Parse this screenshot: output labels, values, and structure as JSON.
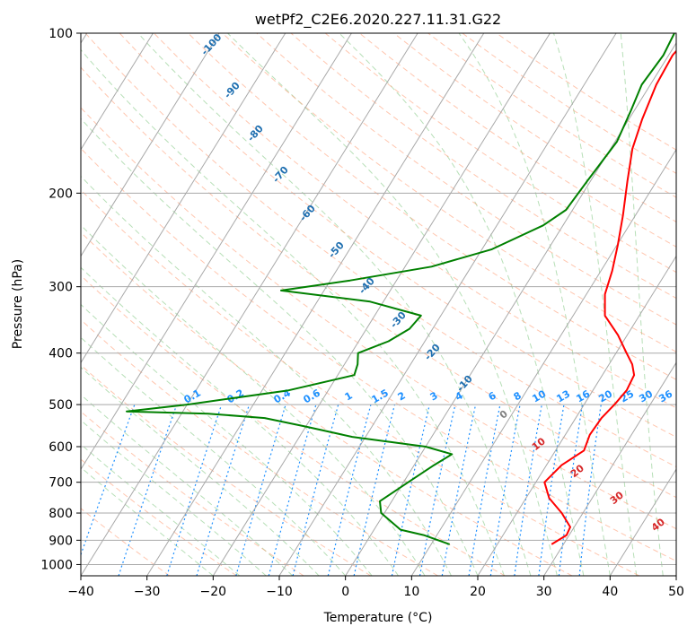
{
  "chart_data": {
    "type": "skew-t",
    "title": "wetPf2_C2E6.2020.227.11.31.G22",
    "xlabel": "Temperature (°C)",
    "ylabel": "Pressure (hPa)",
    "xlim": [
      -40,
      50
    ],
    "ylim": [
      1050,
      100
    ],
    "x_ticks": [
      -40,
      -30,
      -20,
      -10,
      0,
      10,
      20,
      30,
      40,
      50
    ],
    "y_ticks": [
      100,
      200,
      300,
      400,
      500,
      600,
      700,
      800,
      900,
      1000
    ],
    "y_scale": "log",
    "grid": true,
    "isotherm_labels": [
      -100,
      -90,
      -80,
      -70,
      -60,
      -50,
      -40,
      -30,
      -20,
      -10
    ],
    "mixing_ratio_labels": [
      "0.1",
      "0.2",
      "0.4",
      "0.6",
      "1",
      "1.5",
      "2",
      "3",
      "4",
      "6",
      "8",
      "10",
      "13",
      "16",
      "20",
      "25",
      "30",
      "36"
    ],
    "moist_adiabat_labels": [
      "0",
      "10",
      "20",
      "30",
      "40"
    ],
    "colors": {
      "temperature": "#ff0000",
      "dewpoint": "#008000",
      "isotherm": "#a9a9a9",
      "isotherm_label": "#1f6fb0",
      "dry_adiabat": "#ffa07a",
      "moist_adiabat": "#5fb85f",
      "mixing_ratio": "#1e90ff",
      "zero_label": "#808080",
      "moist_label": "#d62728"
    },
    "series": [
      {
        "type": "temperature",
        "points": [
          [
            1.5,
            100
          ],
          [
            0.6,
            110
          ],
          [
            0.9,
            125
          ],
          [
            2.0,
            145
          ],
          [
            3.3,
            165
          ],
          [
            5.6,
            190
          ],
          [
            8.1,
            220
          ],
          [
            10.1,
            250
          ],
          [
            11.7,
            280
          ],
          [
            12.8,
            310
          ],
          [
            14.8,
            340
          ],
          [
            18.6,
            370
          ],
          [
            21.6,
            400
          ],
          [
            23.5,
            420
          ],
          [
            24.8,
            440
          ],
          [
            25.1,
            470
          ],
          [
            24.6,
            500
          ],
          [
            23.9,
            530
          ],
          [
            23.7,
            570
          ],
          [
            24.3,
            610
          ],
          [
            22.3,
            650
          ],
          [
            21.3,
            700
          ],
          [
            23.5,
            750
          ],
          [
            26.8,
            800
          ],
          [
            29.4,
            850
          ],
          [
            29.6,
            880
          ],
          [
            28.2,
            916
          ]
        ]
      },
      {
        "type": "dewpoint",
        "points": [
          [
            -1.2,
            100
          ],
          [
            -0.8,
            110
          ],
          [
            -1.3,
            125
          ],
          [
            -0.5,
            140
          ],
          [
            0.3,
            160
          ],
          [
            -0.5,
            190
          ],
          [
            -1.0,
            215
          ],
          [
            -3.0,
            230
          ],
          [
            -8.5,
            255
          ],
          [
            -16,
            275
          ],
          [
            -27,
            292
          ],
          [
            -36.5,
            305
          ],
          [
            -22,
            320
          ],
          [
            -13,
            340
          ],
          [
            -13.5,
            360
          ],
          [
            -15.5,
            380
          ],
          [
            -19,
            400
          ],
          [
            -18,
            420
          ],
          [
            -17.5,
            440
          ],
          [
            -26,
            470
          ],
          [
            -40,
            500
          ],
          [
            -48.5,
            515
          ],
          [
            -36,
            520
          ],
          [
            -27,
            530
          ],
          [
            -20,
            550
          ],
          [
            -12,
            575
          ],
          [
            0,
            600
          ],
          [
            4.7,
            620
          ],
          [
            3.0,
            650
          ],
          [
            0.7,
            700
          ],
          [
            -1.8,
            760
          ],
          [
            -0.5,
            800
          ],
          [
            4.0,
            860
          ],
          [
            8.0,
            880
          ],
          [
            12.8,
            916
          ]
        ]
      }
    ]
  }
}
